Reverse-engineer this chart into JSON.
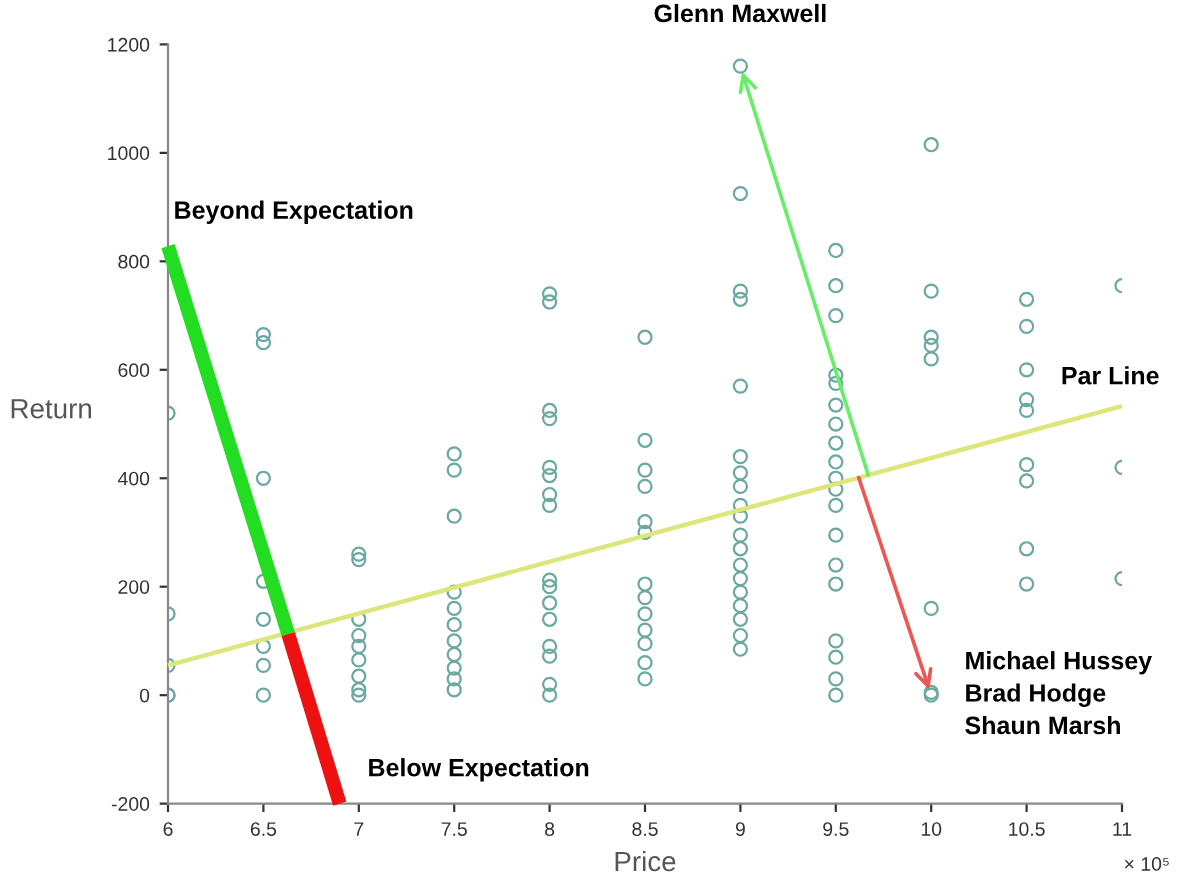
{
  "chart_data": {
    "type": "scatter",
    "xlabel": "Price",
    "ylabel": "Return",
    "xlim": [
      6,
      11
    ],
    "xticks": [
      6,
      6.5,
      7,
      7.5,
      8,
      8.5,
      9,
      9.5,
      10,
      10.5,
      11
    ],
    "ylim": [
      -200,
      1200
    ],
    "yticks": [
      -200,
      0,
      200,
      400,
      600,
      800,
      1000,
      1200
    ],
    "grid": false,
    "series": [
      {
        "marker": "circle",
        "color": "#6aa8a0",
        "x": [
          6,
          6,
          6,
          6,
          6,
          6.5,
          6.5,
          6.5,
          6.5,
          6.5,
          6.5,
          6.5,
          6.5,
          7,
          7,
          7,
          7,
          7,
          7,
          7,
          7,
          7,
          7.5,
          7.5,
          7.5,
          7.5,
          7.5,
          7.5,
          7.5,
          7.5,
          7.5,
          7.5,
          7.5,
          8,
          8,
          8,
          8,
          8,
          8,
          8,
          8,
          8,
          8,
          8,
          8,
          8,
          8,
          8,
          8,
          8.5,
          8.5,
          8.5,
          8.5,
          8.5,
          8.5,
          8.5,
          8.5,
          8.5,
          8.5,
          8.5,
          8.5,
          8.5,
          9,
          9,
          9,
          9,
          9,
          9,
          9,
          9,
          9,
          9,
          9,
          9,
          9,
          9,
          9,
          9,
          9,
          9,
          9,
          9.5,
          9.5,
          9.5,
          9.5,
          9.5,
          9.5,
          9.5,
          9.5,
          9.5,
          9.5,
          9.5,
          9.5,
          9.5,
          9.5,
          9.5,
          9.5,
          9.5,
          9.5,
          9.5,
          10,
          10,
          10,
          10,
          10,
          10,
          10,
          10,
          10.5,
          10.5,
          10.5,
          10.5,
          10.5,
          10.5,
          10.5,
          10.5,
          10.5,
          11,
          11,
          11
        ],
        "values": [
          520,
          150,
          55,
          0,
          0,
          665,
          650,
          400,
          210,
          140,
          90,
          55,
          0,
          260,
          250,
          140,
          110,
          90,
          65,
          35,
          10,
          0,
          445,
          415,
          330,
          190,
          160,
          130,
          100,
          75,
          50,
          30,
          10,
          740,
          725,
          525,
          510,
          420,
          405,
          370,
          350,
          212,
          200,
          170,
          140,
          90,
          72,
          20,
          0,
          660,
          470,
          415,
          385,
          320,
          300,
          205,
          180,
          150,
          120,
          95,
          60,
          30,
          1160,
          925,
          745,
          730,
          570,
          440,
          410,
          385,
          350,
          330,
          295,
          270,
          240,
          215,
          190,
          165,
          140,
          110,
          85,
          820,
          755,
          700,
          590,
          575,
          535,
          500,
          465,
          430,
          400,
          380,
          350,
          295,
          240,
          205,
          100,
          70,
          30,
          0,
          1015,
          745,
          660,
          645,
          620,
          160,
          5,
          0,
          730,
          680,
          600,
          545,
          525,
          425,
          395,
          270,
          205,
          755,
          420,
          215
        ]
      },
      {
        "type": "line",
        "marker": "none",
        "color": "#dde67a",
        "x": [
          6,
          11
        ],
        "values": [
          55,
          533
        ]
      },
      {
        "type": "line",
        "marker": "none",
        "color": "#22dd22",
        "x": [
          6,
          6.63
        ],
        "values": [
          828,
          113
        ]
      },
      {
        "type": "line",
        "marker": "none",
        "color": "#ee1111",
        "x": [
          6.63,
          6.9
        ],
        "values": [
          113,
          -200
        ]
      }
    ],
    "annotations": [
      {
        "text": "Glenn Maxwell",
        "x": 9.0,
        "y": 1160
      },
      {
        "text": "Beyond Expectation",
        "x": 6.0,
        "y": 828
      },
      {
        "text": "Par Line",
        "x": 11,
        "y": 533
      },
      {
        "text": "Michael Hussey\nBrad Hodge\nShaun Marsh",
        "x": 10.0,
        "y": 0
      },
      {
        "text": "Below Expectation",
        "x": 6.9,
        "y": -200
      },
      "× 10⁵"
    ]
  }
}
